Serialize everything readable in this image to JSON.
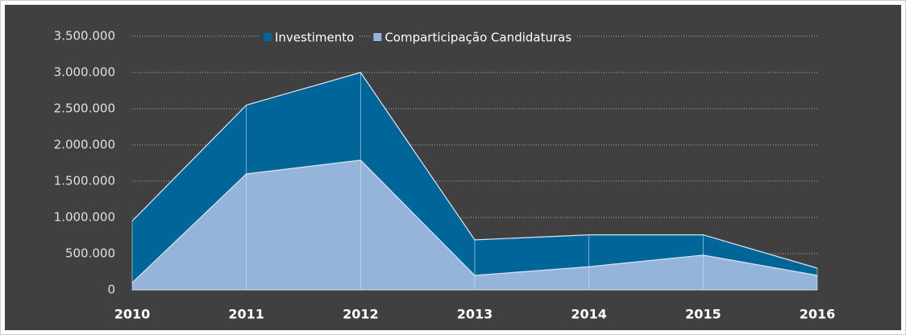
{
  "chart_data": {
    "type": "area",
    "categories": [
      "2010",
      "2011",
      "2012",
      "2013",
      "2014",
      "2015",
      "2016"
    ],
    "series": [
      {
        "name": "Investimento",
        "color": "#00669a",
        "values": [
          950000,
          2550000,
          3000000,
          690000,
          760000,
          760000,
          300000
        ]
      },
      {
        "name": "Comparticipação Candidaturas",
        "color": "#94b4da",
        "values": [
          100000,
          1600000,
          1790000,
          200000,
          320000,
          480000,
          200000
        ]
      }
    ],
    "ylim": [
      0,
      3500000
    ],
    "yticks": [
      0,
      {
        "value": 500000,
        "label": "500.000"
      },
      {
        "value": 1000000,
        "label": "1.000.000"
      },
      {
        "value": 1500000,
        "label": "1.500.000"
      },
      {
        "value": 2000000,
        "label": "2.000.000"
      },
      {
        "value": 2500000,
        "label": "2.500.000"
      },
      {
        "value": 3000000,
        "label": "3.000.000"
      },
      {
        "value": 3500000,
        "label": "3.500.000"
      }
    ],
    "grid": true,
    "legend": "top"
  }
}
